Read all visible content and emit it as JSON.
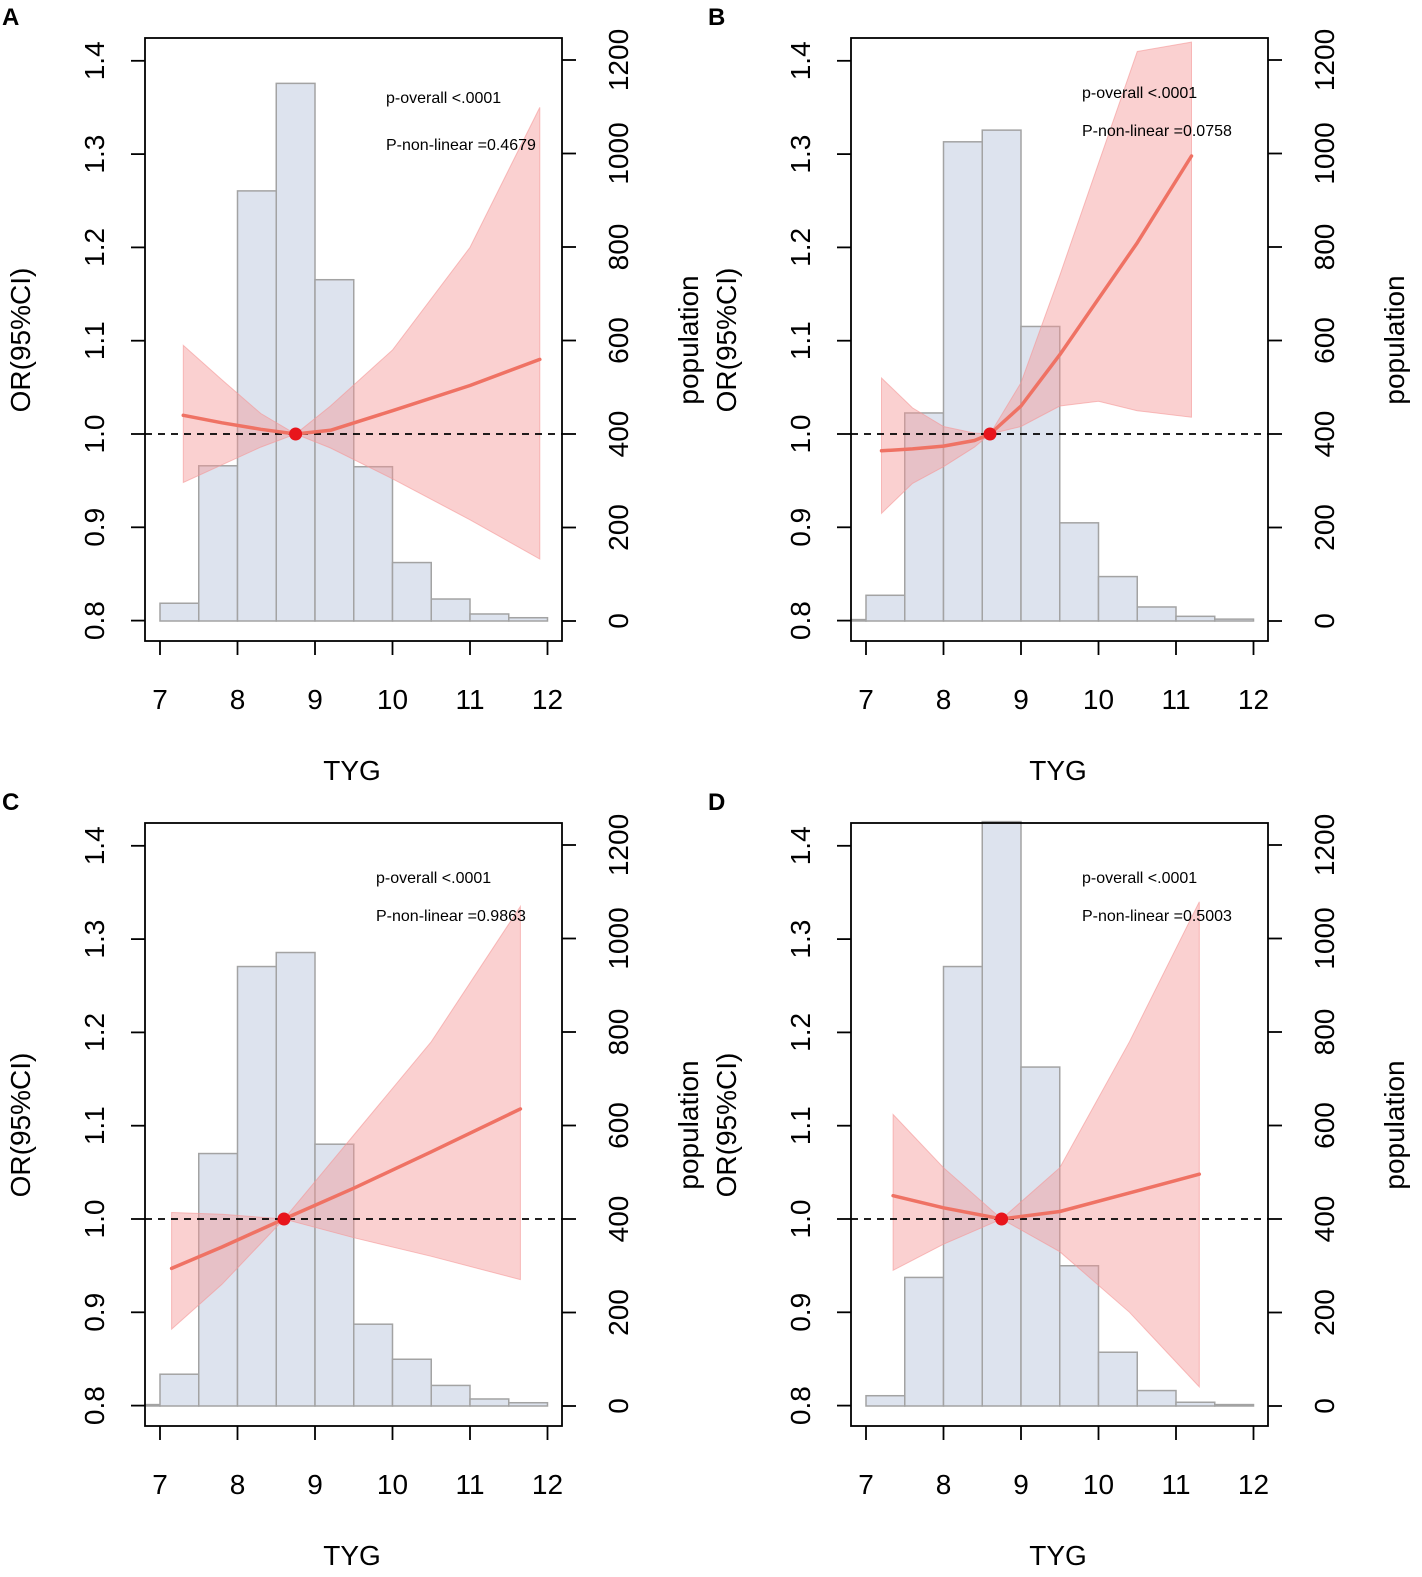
{
  "figure": {
    "colors": {
      "bar_fill": "#dde3ee",
      "bar_stroke": "#a3a3a3",
      "ci_fill": "#f59696",
      "curve": "#ef7264",
      "ref_point": "#e8151c",
      "axis": "#000000"
    }
  },
  "chart_data": [
    {
      "panel": "A",
      "type": "histogram+line",
      "xlabel": "TYG",
      "ylabel_left": "OR(95%CI)",
      "ylabel_right": "population",
      "xlim": [
        6.9,
        12.2
      ],
      "ylim_left": [
        0.78,
        1.42
      ],
      "ylim_right": [
        -60,
        1260
      ],
      "x_ticks": [
        7,
        8,
        9,
        10,
        11,
        12
      ],
      "y_ticks_left": [
        0.8,
        0.9,
        1.0,
        1.1,
        1.2,
        1.3,
        1.4
      ],
      "y_ticks_right": [
        0,
        200,
        400,
        600,
        800,
        1000,
        1200
      ],
      "reference_line": 1.0,
      "annotations": [
        "p-overall <.0001",
        "P-non-linear =0.4679"
      ],
      "histogram": {
        "bin_edges": [
          7,
          7.5,
          8,
          8.5,
          9,
          9.5,
          10,
          10.5,
          11,
          11.5,
          12
        ],
        "counts": [
          38,
          332,
          920,
          1150,
          730,
          330,
          125,
          47,
          15,
          7
        ]
      },
      "curve": {
        "x": [
          7.3,
          7.8,
          8.3,
          8.75,
          9.2,
          10.0,
          11.0,
          11.9
        ],
        "or": [
          1.02,
          1.012,
          1.005,
          1.0,
          1.004,
          1.025,
          1.052,
          1.08
        ],
        "lower": [
          0.948,
          0.967,
          0.986,
          1.0,
          0.985,
          0.952,
          0.908,
          0.866
        ],
        "upper": [
          1.095,
          1.058,
          1.022,
          1.0,
          1.03,
          1.09,
          1.2,
          1.35
        ]
      },
      "ref_point": {
        "x": 8.75,
        "or": 1.0
      }
    },
    {
      "panel": "B",
      "type": "histogram+line",
      "xlabel": "TYG",
      "ylabel_left": "OR(95%CI)",
      "ylabel_right": "population",
      "xlim": [
        6.9,
        12.2
      ],
      "ylim_left": [
        0.78,
        1.42
      ],
      "ylim_right": [
        -60,
        1260
      ],
      "x_ticks": [
        7,
        8,
        9,
        10,
        11,
        12
      ],
      "y_ticks_left": [
        0.8,
        0.9,
        1.0,
        1.1,
        1.2,
        1.3,
        1.4
      ],
      "y_ticks_right": [
        0,
        200,
        400,
        600,
        800,
        1000,
        1200
      ],
      "reference_line": 1.0,
      "annotations": [
        "p-overall <.0001",
        "P-non-linear =0.0758"
      ],
      "histogram": {
        "bin_edges": [
          6.5,
          7,
          7.5,
          8,
          8.5,
          9,
          9.5,
          10,
          10.5,
          11,
          11.5,
          12
        ],
        "counts": [
          3,
          55,
          445,
          1025,
          1050,
          630,
          210,
          95,
          30,
          10,
          4
        ]
      },
      "curve": {
        "x": [
          7.2,
          7.6,
          8.0,
          8.4,
          8.6,
          9.0,
          9.5,
          10.0,
          10.5,
          11.2
        ],
        "or": [
          0.982,
          0.984,
          0.987,
          0.993,
          1.0,
          1.03,
          1.085,
          1.145,
          1.205,
          1.298
        ],
        "lower": [
          0.915,
          0.947,
          0.965,
          0.986,
          1.0,
          1.008,
          1.03,
          1.035,
          1.025,
          1.018
        ],
        "upper": [
          1.06,
          1.028,
          1.008,
          1.001,
          1.0,
          1.055,
          1.17,
          1.29,
          1.41,
          1.42
        ]
      },
      "ref_point": {
        "x": 8.6,
        "or": 1.0
      }
    },
    {
      "panel": "C",
      "type": "histogram+line",
      "xlabel": "TYG",
      "ylabel_left": "OR(95%CI)",
      "ylabel_right": "population",
      "xlim": [
        6.9,
        12.2
      ],
      "ylim_left": [
        0.78,
        1.42
      ],
      "ylim_right": [
        -60,
        1260
      ],
      "x_ticks": [
        7,
        8,
        9,
        10,
        11,
        12
      ],
      "y_ticks_left": [
        0.8,
        0.9,
        1.0,
        1.1,
        1.2,
        1.3,
        1.4
      ],
      "y_ticks_right": [
        0,
        200,
        400,
        600,
        800,
        1000,
        1200
      ],
      "reference_line": 1.0,
      "annotations": [
        "p-overall <.0001",
        "P-non-linear =0.9863"
      ],
      "histogram": {
        "bin_edges": [
          6.5,
          7,
          7.5,
          8,
          8.5,
          9,
          9.5,
          10,
          10.5,
          11,
          11.5,
          12
        ],
        "counts": [
          3,
          68,
          540,
          940,
          970,
          560,
          175,
          100,
          44,
          15,
          7
        ]
      },
      "curve": {
        "x": [
          7.15,
          7.8,
          8.6,
          9.5,
          10.5,
          11.65
        ],
        "or": [
          0.947,
          0.97,
          1.0,
          1.033,
          1.072,
          1.118
        ],
        "lower": [
          0.882,
          0.93,
          1.0,
          0.98,
          0.96,
          0.935
        ],
        "upper": [
          1.007,
          1.005,
          1.0,
          1.09,
          1.19,
          1.335
        ]
      },
      "ref_point": {
        "x": 8.6,
        "or": 1.0
      }
    },
    {
      "panel": "D",
      "type": "histogram+line",
      "xlabel": "TYG",
      "ylabel_left": "OR(95%CI)",
      "ylabel_right": "population",
      "xlim": [
        6.9,
        12.2
      ],
      "ylim_left": [
        0.78,
        1.42
      ],
      "ylim_right": [
        -60,
        1260
      ],
      "x_ticks": [
        7,
        8,
        9,
        10,
        11,
        12
      ],
      "y_ticks_left": [
        0.8,
        0.9,
        1.0,
        1.1,
        1.2,
        1.3,
        1.4
      ],
      "y_ticks_right": [
        0,
        200,
        400,
        600,
        800,
        1000,
        1200
      ],
      "reference_line": 1.0,
      "annotations": [
        "p-overall <.0001",
        "P-non-linear =0.5003"
      ],
      "histogram": {
        "bin_edges": [
          7,
          7.5,
          8,
          8.5,
          9,
          9.5,
          10,
          10.5,
          11,
          11.5,
          12
        ],
        "counts": [
          22,
          275,
          940,
          1250,
          725,
          300,
          115,
          33,
          8,
          3
        ]
      },
      "curve": {
        "x": [
          7.35,
          8.0,
          8.75,
          9.5,
          10.4,
          11.3
        ],
        "or": [
          1.025,
          1.012,
          1.0,
          1.008,
          1.028,
          1.048
        ],
        "lower": [
          0.945,
          0.973,
          1.0,
          0.965,
          0.9,
          0.82
        ],
        "upper": [
          1.112,
          1.055,
          1.0,
          1.055,
          1.19,
          1.34
        ]
      },
      "ref_point": {
        "x": 8.75,
        "or": 1.0
      }
    }
  ]
}
